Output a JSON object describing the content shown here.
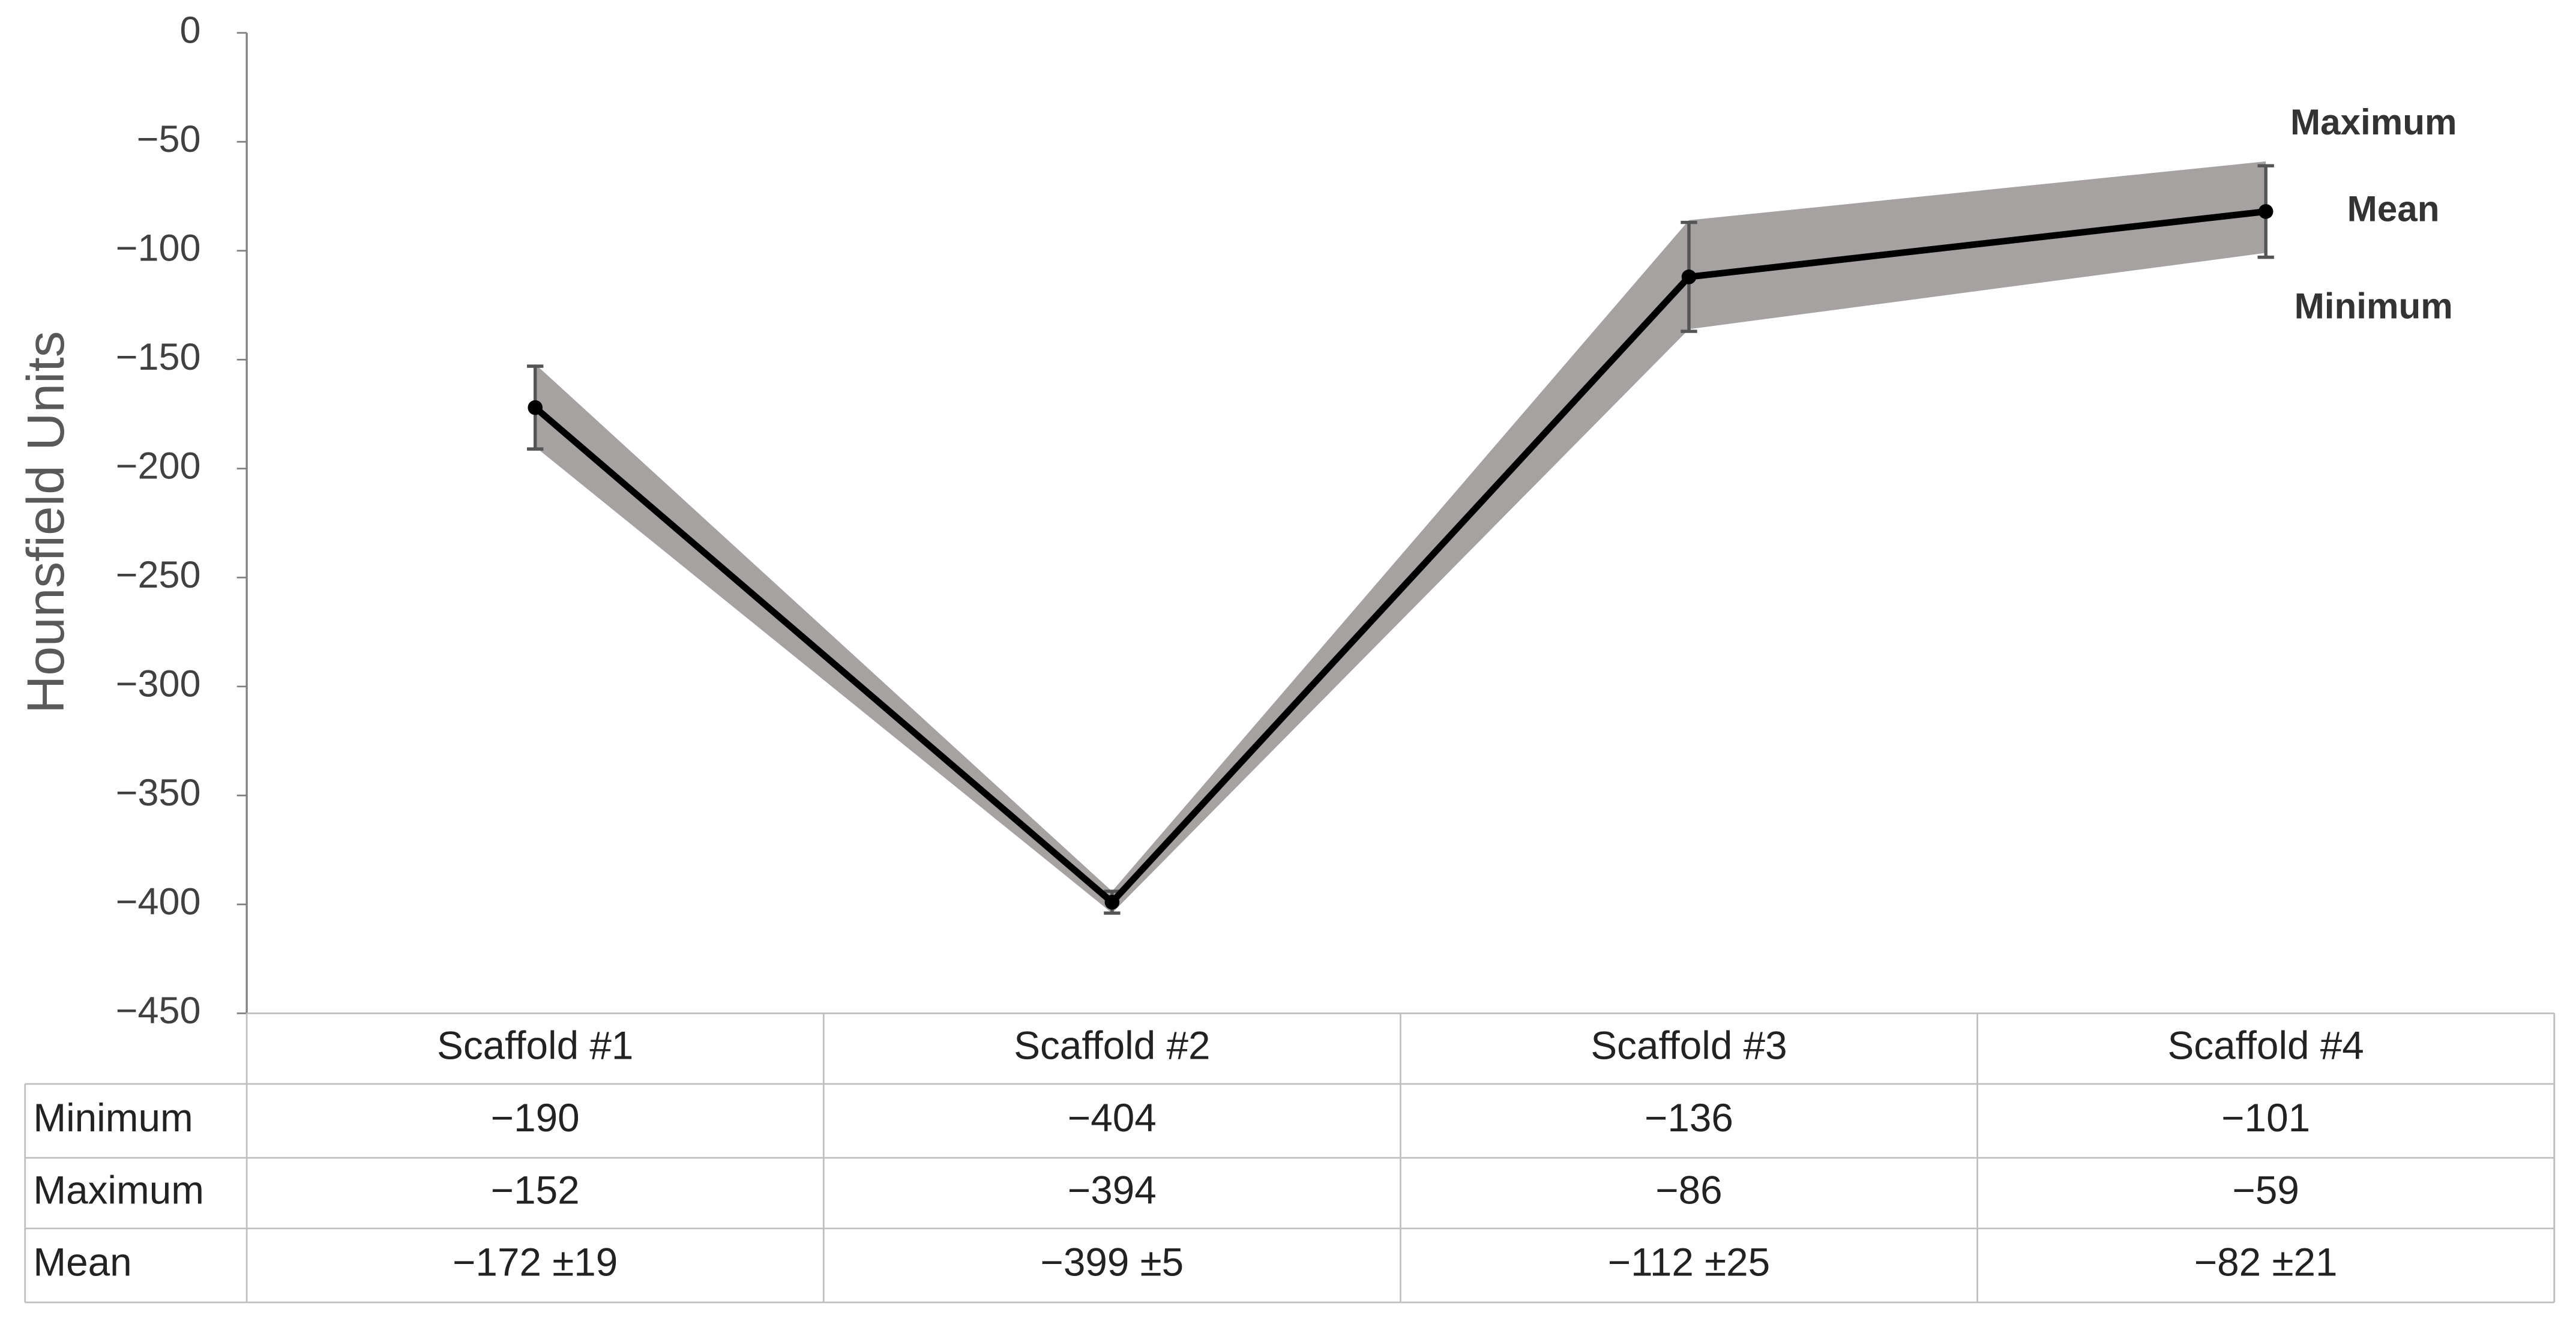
{
  "chart_data": {
    "type": "line",
    "ylabel": "Hounsfield Units",
    "categories": [
      "Scaffold #1",
      "Scaffold #2",
      "Scaffold #3",
      "Scaffold #4"
    ],
    "ylim": [
      -450,
      0
    ],
    "yticks": [
      0,
      {
        "value": -50,
        "label": "−50"
      },
      {
        "value": -100,
        "label": "−100"
      },
      {
        "value": -150,
        "label": "−150"
      },
      {
        "value": -200,
        "label": "−200"
      },
      {
        "value": -250,
        "label": "−250"
      },
      {
        "value": -300,
        "label": "−300"
      },
      {
        "value": -350,
        "label": "−350"
      },
      {
        "value": -400,
        "label": "−400"
      },
      {
        "value": -450,
        "label": "−450"
      }
    ],
    "grid": false,
    "band_color": "#a6a2a2",
    "series": [
      {
        "name": "Minimum",
        "values": [
          -190,
          -404,
          -136,
          -101
        ],
        "value_labels": [
          "−190",
          "−404",
          "−136",
          "−101"
        ]
      },
      {
        "name": "Maximum",
        "values": [
          -152,
          -394,
          -86,
          -59
        ],
        "value_labels": [
          "−152",
          "−394",
          "−86",
          "−59"
        ]
      },
      {
        "name": "Mean",
        "color": "#000000",
        "values": [
          -172,
          -399,
          -112,
          -82
        ],
        "errors": [
          19,
          5,
          25,
          21
        ],
        "value_labels": [
          "−172 ±19",
          "−399 ±5",
          "−112 ±25",
          "−82 ±21"
        ]
      }
    ]
  }
}
